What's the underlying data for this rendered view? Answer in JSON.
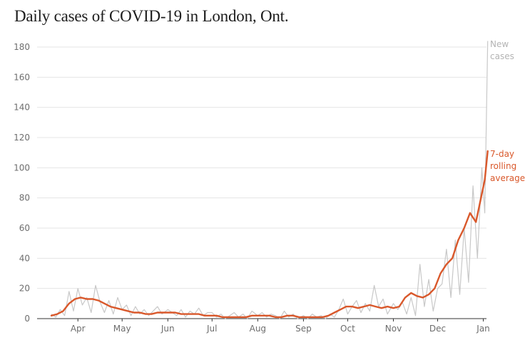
{
  "chart_data": {
    "type": "line",
    "title": "Daily cases of COVID-19 in London, Ont.",
    "xlabel": "",
    "ylabel": "",
    "x_start": "2020-03-14",
    "x_tick_labels": [
      "Apr",
      "May",
      "Jun",
      "Jul",
      "Aug",
      "Sep",
      "Oct",
      "Nov",
      "Dec",
      "Jan"
    ],
    "x_tick_dates": [
      "2020-04-01",
      "2020-05-01",
      "2020-06-01",
      "2020-07-01",
      "2020-08-01",
      "2020-09-01",
      "2020-10-01",
      "2020-11-01",
      "2020-12-01",
      "2021-01-01"
    ],
    "y_ticks": [
      0,
      20,
      40,
      60,
      80,
      100,
      120,
      140,
      160,
      180
    ],
    "ylim": [
      0,
      180
    ],
    "grid": true,
    "colors": {
      "daily": "#c8c8c8",
      "average": "#d9582b"
    },
    "series": [
      {
        "name": "New cases",
        "label_lines": [
          "New",
          "cases"
        ],
        "x": [
          "2020-03-14",
          "2020-03-17",
          "2020-03-20",
          "2020-03-23",
          "2020-03-26",
          "2020-03-29",
          "2020-04-01",
          "2020-04-04",
          "2020-04-07",
          "2020-04-10",
          "2020-04-13",
          "2020-04-16",
          "2020-04-19",
          "2020-04-22",
          "2020-04-25",
          "2020-04-28",
          "2020-05-01",
          "2020-05-04",
          "2020-05-07",
          "2020-05-10",
          "2020-05-13",
          "2020-05-16",
          "2020-05-19",
          "2020-05-22",
          "2020-05-25",
          "2020-05-28",
          "2020-06-01",
          "2020-06-04",
          "2020-06-07",
          "2020-06-10",
          "2020-06-13",
          "2020-06-16",
          "2020-06-19",
          "2020-06-22",
          "2020-06-25",
          "2020-06-28",
          "2020-07-01",
          "2020-07-04",
          "2020-07-07",
          "2020-07-10",
          "2020-07-13",
          "2020-07-16",
          "2020-07-19",
          "2020-07-22",
          "2020-07-25",
          "2020-07-28",
          "2020-08-01",
          "2020-08-04",
          "2020-08-07",
          "2020-08-10",
          "2020-08-13",
          "2020-08-16",
          "2020-08-19",
          "2020-08-22",
          "2020-08-25",
          "2020-08-28",
          "2020-09-01",
          "2020-09-04",
          "2020-09-07",
          "2020-09-10",
          "2020-09-13",
          "2020-09-16",
          "2020-09-19",
          "2020-09-22",
          "2020-09-25",
          "2020-09-28",
          "2020-10-01",
          "2020-10-04",
          "2020-10-07",
          "2020-10-10",
          "2020-10-13",
          "2020-10-16",
          "2020-10-19",
          "2020-10-22",
          "2020-10-25",
          "2020-10-28",
          "2020-11-01",
          "2020-11-04",
          "2020-11-07",
          "2020-11-10",
          "2020-11-13",
          "2020-11-16",
          "2020-11-19",
          "2020-11-22",
          "2020-11-25",
          "2020-11-28",
          "2020-12-01",
          "2020-12-04",
          "2020-12-07",
          "2020-12-10",
          "2020-12-13",
          "2020-12-16",
          "2020-12-19",
          "2020-12-22",
          "2020-12-25",
          "2020-12-28",
          "2020-12-31",
          "2021-01-02",
          "2021-01-04"
        ],
        "values": [
          3,
          1,
          6,
          2,
          18,
          5,
          20,
          9,
          14,
          4,
          22,
          11,
          4,
          12,
          3,
          14,
          6,
          9,
          2,
          8,
          3,
          6,
          2,
          5,
          8,
          3,
          6,
          4,
          2,
          6,
          1,
          5,
          3,
          7,
          2,
          4,
          4,
          1,
          3,
          0,
          2,
          4,
          1,
          3,
          0,
          5,
          2,
          4,
          1,
          3,
          2,
          0,
          5,
          1,
          3,
          0,
          2,
          0,
          3,
          1,
          2,
          0,
          3,
          1,
          6,
          13,
          3,
          8,
          12,
          4,
          10,
          5,
          22,
          8,
          13,
          3,
          10,
          6,
          11,
          3,
          14,
          2,
          36,
          8,
          26,
          5,
          20,
          23,
          46,
          14,
          52,
          16,
          60,
          24,
          88,
          40,
          100,
          70,
          184
        ]
      },
      {
        "name": "7-day rolling average",
        "label_lines": [
          "7-day",
          "rolling",
          "average"
        ],
        "x": [
          "2020-03-14",
          "2020-03-18",
          "2020-03-22",
          "2020-03-26",
          "2020-03-30",
          "2020-04-03",
          "2020-04-07",
          "2020-04-11",
          "2020-04-15",
          "2020-04-19",
          "2020-04-23",
          "2020-04-27",
          "2020-05-01",
          "2020-05-05",
          "2020-05-09",
          "2020-05-13",
          "2020-05-17",
          "2020-05-21",
          "2020-05-25",
          "2020-05-29",
          "2020-06-02",
          "2020-06-06",
          "2020-06-10",
          "2020-06-14",
          "2020-06-18",
          "2020-06-22",
          "2020-06-26",
          "2020-06-30",
          "2020-07-04",
          "2020-07-08",
          "2020-07-12",
          "2020-07-16",
          "2020-07-20",
          "2020-07-24",
          "2020-07-28",
          "2020-08-01",
          "2020-08-05",
          "2020-08-09",
          "2020-08-13",
          "2020-08-17",
          "2020-08-21",
          "2020-08-25",
          "2020-08-29",
          "2020-09-02",
          "2020-09-06",
          "2020-09-10",
          "2020-09-14",
          "2020-09-18",
          "2020-09-22",
          "2020-09-26",
          "2020-09-30",
          "2020-10-04",
          "2020-10-08",
          "2020-10-12",
          "2020-10-16",
          "2020-10-20",
          "2020-10-24",
          "2020-10-28",
          "2020-11-01",
          "2020-11-05",
          "2020-11-09",
          "2020-11-13",
          "2020-11-17",
          "2020-11-21",
          "2020-11-25",
          "2020-11-29",
          "2020-12-03",
          "2020-12-07",
          "2020-12-11",
          "2020-12-15",
          "2020-12-19",
          "2020-12-23",
          "2020-12-27",
          "2020-12-30",
          "2021-01-02",
          "2021-01-04"
        ],
        "values": [
          2,
          3,
          5,
          10,
          13,
          14,
          13,
          13,
          12,
          10,
          8,
          7,
          6,
          5,
          4,
          4,
          3,
          3,
          4,
          4,
          4,
          4,
          3,
          3,
          3,
          3,
          2,
          2,
          2,
          1,
          1,
          1,
          1,
          1,
          2,
          2,
          2,
          2,
          1,
          1,
          2,
          2,
          1,
          1,
          1,
          1,
          1,
          2,
          4,
          6,
          8,
          8,
          7,
          8,
          9,
          8,
          7,
          8,
          7,
          8,
          14,
          17,
          15,
          14,
          16,
          20,
          30,
          36,
          40,
          52,
          60,
          70,
          64,
          78,
          92,
          111
        ]
      }
    ]
  }
}
